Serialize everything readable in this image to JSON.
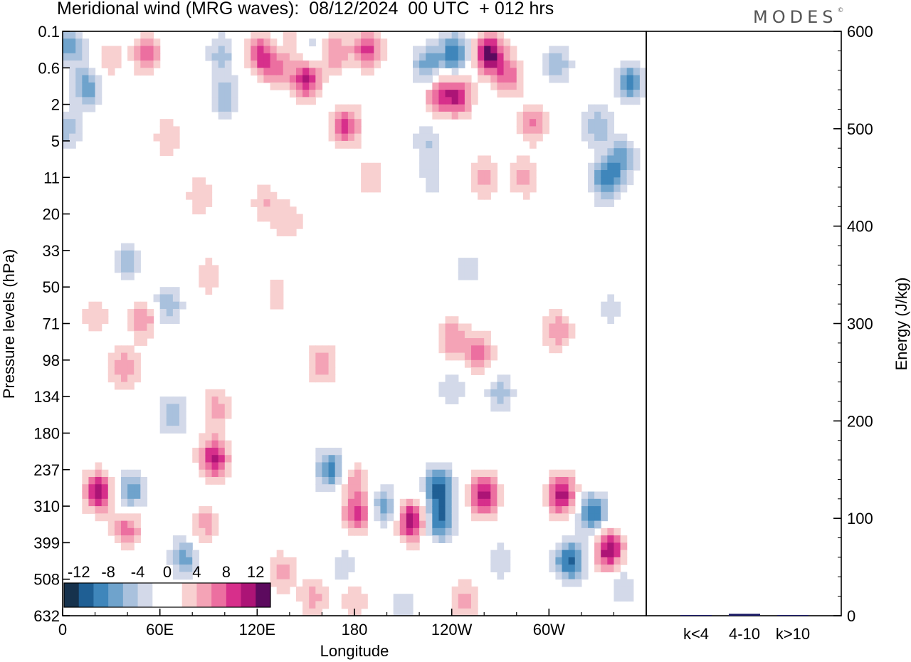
{
  "header": {
    "title": "Meridional wind (MRG waves):  08/12/2024  00 UTC  + 012 hrs",
    "brand": "MODES",
    "brand_mark": "©"
  },
  "colors": {
    "scale": [
      "#16324d",
      "#1f5f94",
      "#3f86bb",
      "#6fa3cc",
      "#a9c1dd",
      "#d3d9e9",
      "#ffffff",
      "#ffffff",
      "#f8d0d0",
      "#f4a3b6",
      "#ec6fa0",
      "#d72f8b",
      "#ac1476",
      "#5c0a5e"
    ],
    "bar": "#1a1a66"
  },
  "chart_data": [
    {
      "type": "heatmap",
      "title": "Meridional wind (MRG waves):  08/12/2024  00 UTC  + 012 hrs",
      "xlabel": "Longitude",
      "ylabel": "Pressure levels (hPa)",
      "x_ticks": [
        "0",
        "60E",
        "120E",
        "180",
        "120W",
        "60W"
      ],
      "x_tick_values": [
        0,
        60,
        120,
        180,
        240,
        300
      ],
      "xlim": [
        0,
        360
      ],
      "y_ticks": [
        "0.1",
        "0.6",
        "2",
        "5",
        "11",
        "20",
        "33",
        "50",
        "71",
        "98",
        "134",
        "180",
        "237",
        "310",
        "399",
        "508",
        "632"
      ],
      "colorbar_labels": [
        "-12",
        "-8",
        "-4",
        "0",
        "4",
        "8",
        "12"
      ],
      "colorbar_levels": [
        -14,
        -12,
        -10,
        -8,
        -6,
        -4,
        -2,
        0,
        2,
        4,
        6,
        8,
        10,
        12,
        14
      ],
      "blobs": [
        {
          "x": 5,
          "y": 0.4,
          "v": -7
        },
        {
          "x": 15,
          "y": 1.5,
          "v": -8
        },
        {
          "x": 3,
          "y": 2.7,
          "v": -5
        },
        {
          "x": 28,
          "y": 0.8,
          "v": 4
        },
        {
          "x": 52,
          "y": 0.6,
          "v": 7
        },
        {
          "x": 65,
          "y": 2.9,
          "v": 4
        },
        {
          "x": 98,
          "y": 0.6,
          "v": -5
        },
        {
          "x": 123,
          "y": 0.6,
          "v": 11
        },
        {
          "x": 132,
          "y": 0.9,
          "v": 7
        },
        {
          "x": 142,
          "y": 0.35,
          "v": 5
        },
        {
          "x": 150,
          "y": 1.3,
          "v": 11
        },
        {
          "x": 168,
          "y": 0.6,
          "v": 6
        },
        {
          "x": 188,
          "y": 0.5,
          "v": 9
        },
        {
          "x": 175,
          "y": 2.6,
          "v": 9
        },
        {
          "x": 100,
          "y": 1.8,
          "v": -6
        },
        {
          "x": 150,
          "y": 0.5,
          "v": -5
        },
        {
          "x": 130,
          "y": 0.5,
          "v": -6
        },
        {
          "x": 225,
          "y": 0.95,
          "v": -8
        },
        {
          "x": 242,
          "y": 0.6,
          "v": -10
        },
        {
          "x": 263,
          "y": 0.6,
          "v": 13
        },
        {
          "x": 244,
          "y": 1.8,
          "v": 9
        },
        {
          "x": 232,
          "y": 1.7,
          "v": 8
        },
        {
          "x": 275,
          "y": 1.2,
          "v": 7
        },
        {
          "x": 290,
          "y": 2.5,
          "v": 6
        },
        {
          "x": 305,
          "y": 0.9,
          "v": -6
        },
        {
          "x": 350,
          "y": 1.4,
          "v": -9
        },
        {
          "x": 330,
          "y": 2.6,
          "v": -6
        },
        {
          "x": 335,
          "y": 4.1,
          "v": -9
        },
        {
          "x": 345,
          "y": 3.5,
          "v": -7
        },
        {
          "x": 225,
          "y": 3.0,
          "v": -4
        },
        {
          "x": 228,
          "y": 4.0,
          "v": -3
        },
        {
          "x": 285,
          "y": 4.0,
          "v": 5
        },
        {
          "x": 260,
          "y": 4.0,
          "v": 5
        },
        {
          "x": 85,
          "y": 4.5,
          "v": 4
        },
        {
          "x": 125,
          "y": 4.7,
          "v": 4
        },
        {
          "x": 140,
          "y": 5.2,
          "v": 4
        },
        {
          "x": 190,
          "y": 4.0,
          "v": 4
        },
        {
          "x": 40,
          "y": 6.3,
          "v": -5
        },
        {
          "x": 65,
          "y": 7.5,
          "v": -6
        },
        {
          "x": 20,
          "y": 7.8,
          "v": 4
        },
        {
          "x": 90,
          "y": 6.7,
          "v": 4
        },
        {
          "x": 50,
          "y": 7.9,
          "v": 6
        },
        {
          "x": 38,
          "y": 9.2,
          "v": 6
        },
        {
          "x": 132,
          "y": 7.2,
          "v": 3
        },
        {
          "x": 160,
          "y": 9.1,
          "v": 6
        },
        {
          "x": 240,
          "y": 8.4,
          "v": 6
        },
        {
          "x": 257,
          "y": 8.8,
          "v": 7
        },
        {
          "x": 305,
          "y": 8.2,
          "v": 6
        },
        {
          "x": 250,
          "y": 6.5,
          "v": -3
        },
        {
          "x": 240,
          "y": 9.8,
          "v": -4
        },
        {
          "x": 270,
          "y": 9.9,
          "v": -5
        },
        {
          "x": 338,
          "y": 7.6,
          "v": -3
        },
        {
          "x": 68,
          "y": 10.5,
          "v": -6
        },
        {
          "x": 95,
          "y": 10.3,
          "v": 5
        },
        {
          "x": 92,
          "y": 11.6,
          "v": 6
        },
        {
          "x": 22,
          "y": 12.6,
          "v": 11
        },
        {
          "x": 42,
          "y": 12.6,
          "v": -8
        },
        {
          "x": 40,
          "y": 13.6,
          "v": 7
        },
        {
          "x": 75,
          "y": 14.4,
          "v": -7
        },
        {
          "x": 88,
          "y": 13.5,
          "v": 5
        },
        {
          "x": 95,
          "y": 11.8,
          "v": 5
        },
        {
          "x": 135,
          "y": 14.8,
          "v": 5
        },
        {
          "x": 165,
          "y": 12.0,
          "v": -9
        },
        {
          "x": 175,
          "y": 14.7,
          "v": -4
        },
        {
          "x": 180,
          "y": 12.3,
          "v": 5
        },
        {
          "x": 182,
          "y": 13.2,
          "v": 9
        },
        {
          "x": 198,
          "y": 13.0,
          "v": -7
        },
        {
          "x": 215,
          "y": 13.4,
          "v": 12
        },
        {
          "x": 232,
          "y": 12.5,
          "v": -11
        },
        {
          "x": 233,
          "y": 13.4,
          "v": -10
        },
        {
          "x": 260,
          "y": 12.7,
          "v": 11
        },
        {
          "x": 308,
          "y": 12.7,
          "v": 11
        },
        {
          "x": 313,
          "y": 14.5,
          "v": -11
        },
        {
          "x": 327,
          "y": 13.2,
          "v": -10
        },
        {
          "x": 337,
          "y": 14.2,
          "v": 12
        },
        {
          "x": 345,
          "y": 15.2,
          "v": -4
        },
        {
          "x": 270,
          "y": 14.5,
          "v": -4
        },
        {
          "x": 248,
          "y": 15.6,
          "v": 5
        },
        {
          "x": 155,
          "y": 15.5,
          "v": 5
        },
        {
          "x": 180,
          "y": 15.5,
          "v": 4
        },
        {
          "x": 210,
          "y": 15.8,
          "v": -4
        }
      ]
    },
    {
      "type": "bar",
      "categories": [
        "k<4",
        "4-10",
        "k>10"
      ],
      "values": [
        0.3,
        2.0,
        0.3
      ],
      "ylabel": "Energy (J/kg)",
      "ylim": [
        0,
        600
      ],
      "y_ticks": [
        "0",
        "100",
        "200",
        "300",
        "400",
        "500",
        "600"
      ]
    }
  ]
}
